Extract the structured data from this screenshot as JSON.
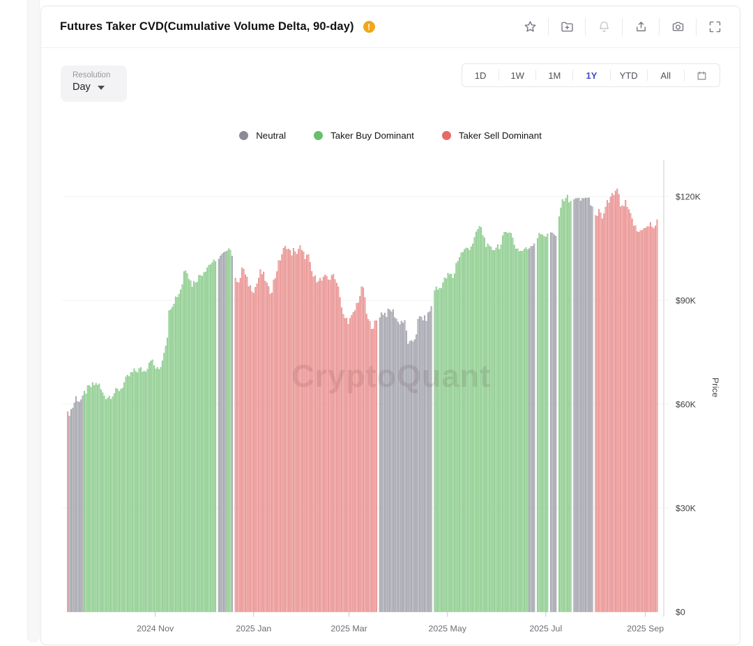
{
  "header": {
    "title": "Futures Taker CVD(Cumulative Volume Delta, 90-day)",
    "warning_icon": "!",
    "toolbar_icons": [
      {
        "name": "star-icon",
        "muted": false
      },
      {
        "name": "folder-add-icon",
        "muted": false
      },
      {
        "name": "bell-icon",
        "muted": true
      },
      {
        "name": "share-icon",
        "muted": false
      },
      {
        "name": "camera-icon",
        "muted": false
      },
      {
        "name": "fullscreen-icon",
        "muted": false
      }
    ]
  },
  "controls": {
    "resolution_label": "Resolution",
    "resolution_value": "Day",
    "ranges": [
      "1D",
      "1W",
      "1M",
      "1Y",
      "YTD",
      "All"
    ],
    "active_range": "1Y",
    "active_color": "#4348c4",
    "calendar_icon": "calendar-icon"
  },
  "legend": [
    {
      "key": "neutral",
      "label": "Neutral",
      "color": "#8b8b98"
    },
    {
      "key": "buy",
      "label": "Taker Buy Dominant",
      "color": "#69be6e"
    },
    {
      "key": "sell",
      "label": "Taker Sell Dominant",
      "color": "#e66a6a"
    }
  ],
  "watermark": "CryptoQuant",
  "chart_data": {
    "type": "bar",
    "title": "Futures Taker CVD(Cumulative Volume Delta, 90-day)",
    "resolution": "Day",
    "ylabel": "Price",
    "ylim": [
      0,
      130000
    ],
    "grid": true,
    "legend_position": "top",
    "bar_count": 357,
    "y_ticks": [
      {
        "value": 0,
        "label": "$0"
      },
      {
        "value": 30,
        "label": "$30K"
      },
      {
        "value": 60,
        "label": "$60K"
      },
      {
        "value": 90,
        "label": "$90K"
      },
      {
        "value": 120,
        "label": "$120K"
      }
    ],
    "x_ticks": [
      {
        "t": 0.149,
        "label": "2024 Nov"
      },
      {
        "t": 0.315,
        "label": "2025 Jan"
      },
      {
        "t": 0.476,
        "label": "2025 Mar"
      },
      {
        "t": 0.642,
        "label": "2025 May"
      },
      {
        "t": 0.808,
        "label": "2025 Jul"
      },
      {
        "t": 0.976,
        "label": "2025 Sep"
      }
    ],
    "categories": {
      "neutral": {
        "label": "Neutral",
        "fill": "#bebec6",
        "stroke": "#8d8d97"
      },
      "buy": {
        "label": "Taker Buy Dominant",
        "fill": "#acd9ab",
        "stroke": "#74c276"
      },
      "sell": {
        "label": "Taker Sell Dominant",
        "fill": "#f1aead",
        "stroke": "#e17c79"
      }
    },
    "price_unit": "USD thousands",
    "segments": [
      {
        "category": "sell",
        "points": [
          [
            0.0,
            55.5
          ],
          [
            0.002,
            57.5
          ]
        ]
      },
      {
        "category": "neutral",
        "points": [
          [
            0.004,
            57.5
          ],
          [
            0.011,
            59.5
          ],
          [
            0.015,
            62
          ],
          [
            0.021,
            61
          ],
          [
            0.028,
            61.5
          ]
        ]
      },
      {
        "category": "buy",
        "points": [
          [
            0.029,
            63
          ],
          [
            0.036,
            64.5
          ],
          [
            0.045,
            65.5
          ],
          [
            0.053,
            66
          ],
          [
            0.06,
            63
          ],
          [
            0.067,
            62
          ],
          [
            0.074,
            62.5
          ],
          [
            0.082,
            63.5
          ],
          [
            0.091,
            64.5
          ],
          [
            0.1,
            67
          ],
          [
            0.107,
            68.5
          ],
          [
            0.115,
            69.5
          ],
          [
            0.124,
            70
          ],
          [
            0.131,
            69.5
          ],
          [
            0.136,
            71
          ],
          [
            0.141,
            73.5
          ],
          [
            0.147,
            71
          ],
          [
            0.154,
            69.5
          ],
          [
            0.16,
            72
          ],
          [
            0.165,
            76.5
          ],
          [
            0.169,
            79
          ],
          [
            0.173,
            88
          ],
          [
            0.178,
            89
          ],
          [
            0.184,
            91
          ],
          [
            0.189,
            92
          ],
          [
            0.195,
            95
          ],
          [
            0.198,
            99
          ],
          [
            0.202,
            99.5
          ],
          [
            0.207,
            96
          ],
          [
            0.212,
            94.5
          ],
          [
            0.218,
            96
          ],
          [
            0.224,
            97
          ],
          [
            0.231,
            98.5
          ],
          [
            0.238,
            100
          ],
          [
            0.245,
            101
          ],
          [
            0.251,
            100.5
          ],
          [
            0.253,
            101
          ]
        ]
      },
      {
        "category": "neutral",
        "points": [
          [
            0.254,
            101.5
          ],
          [
            0.26,
            102.5
          ],
          [
            0.266,
            103.5
          ],
          [
            0.268,
            103
          ]
        ]
      },
      {
        "category": "buy",
        "points": [
          [
            0.269,
            104
          ],
          [
            0.272,
            106.5
          ],
          [
            0.274,
            105.5
          ],
          [
            0.276,
            104.5
          ]
        ]
      },
      {
        "category": "neutral",
        "points": [
          [
            0.278,
            103.5
          ],
          [
            0.28,
            103
          ]
        ]
      },
      {
        "category": "sell",
        "points": [
          [
            0.282,
            98.5
          ],
          [
            0.287,
            96
          ],
          [
            0.292,
            94.5
          ],
          [
            0.296,
            100.5
          ],
          [
            0.301,
            97
          ],
          [
            0.307,
            94.5
          ],
          [
            0.312,
            93.5
          ],
          [
            0.316,
            93
          ],
          [
            0.321,
            95
          ],
          [
            0.326,
            98
          ],
          [
            0.331,
            97.5
          ],
          [
            0.335,
            96
          ],
          [
            0.34,
            93
          ],
          [
            0.345,
            92.5
          ],
          [
            0.348,
            95
          ],
          [
            0.352,
            97
          ],
          [
            0.355,
            99.5
          ],
          [
            0.36,
            102
          ],
          [
            0.364,
            104
          ],
          [
            0.368,
            105
          ],
          [
            0.372,
            106
          ],
          [
            0.375,
            104
          ],
          [
            0.379,
            103.5
          ],
          [
            0.382,
            104.5
          ],
          [
            0.386,
            103
          ],
          [
            0.389,
            104.5
          ],
          [
            0.393,
            105.5
          ],
          [
            0.396,
            104
          ],
          [
            0.4,
            103
          ],
          [
            0.404,
            102.5
          ],
          [
            0.407,
            103
          ],
          [
            0.411,
            99.5
          ],
          [
            0.415,
            97
          ],
          [
            0.42,
            96
          ],
          [
            0.425,
            96.5
          ],
          [
            0.429,
            95.5
          ],
          [
            0.434,
            96
          ],
          [
            0.438,
            97
          ],
          [
            0.441,
            96.5
          ],
          [
            0.446,
            96
          ],
          [
            0.451,
            98
          ],
          [
            0.455,
            95
          ],
          [
            0.459,
            94.5
          ],
          [
            0.462,
            88.5
          ],
          [
            0.467,
            85
          ],
          [
            0.472,
            84.5
          ],
          [
            0.476,
            84
          ],
          [
            0.481,
            85
          ],
          [
            0.486,
            87
          ],
          [
            0.489,
            89
          ],
          [
            0.493,
            90.5
          ],
          [
            0.496,
            92.5
          ],
          [
            0.5,
            94
          ],
          [
            0.504,
            88
          ],
          [
            0.507,
            84.5
          ],
          [
            0.512,
            83
          ],
          [
            0.516,
            82.5
          ],
          [
            0.521,
            83.5
          ],
          [
            0.524,
            83.8
          ]
        ]
      },
      {
        "category": "neutral",
        "points": [
          [
            0.327,
            102.5
          ],
          [
            0.329,
            102.8
          ]
        ]
      },
      {
        "category": "neutral",
        "points": [
          [
            0.526,
            85.5
          ],
          [
            0.533,
            86.5
          ],
          [
            0.539,
            86
          ],
          [
            0.545,
            87
          ],
          [
            0.549,
            87.2
          ],
          [
            0.554,
            85.5
          ],
          [
            0.559,
            83.5
          ],
          [
            0.565,
            84
          ],
          [
            0.571,
            83.3
          ],
          [
            0.575,
            78
          ],
          [
            0.58,
            77
          ],
          [
            0.585,
            78.5
          ],
          [
            0.589,
            80
          ],
          [
            0.593,
            84.5
          ],
          [
            0.598,
            85
          ],
          [
            0.604,
            84.5
          ],
          [
            0.608,
            85
          ],
          [
            0.613,
            87.5
          ],
          [
            0.615,
            88
          ]
        ]
      },
      {
        "category": "buy",
        "points": [
          [
            0.618,
            93
          ],
          [
            0.622,
            93.5
          ],
          [
            0.627,
            93
          ],
          [
            0.632,
            94.5
          ],
          [
            0.638,
            96
          ],
          [
            0.642,
            97
          ],
          [
            0.647,
            97.5
          ],
          [
            0.651,
            96.5
          ],
          [
            0.654,
            98
          ],
          [
            0.658,
            101.5
          ],
          [
            0.662,
            102.5
          ],
          [
            0.667,
            104
          ],
          [
            0.672,
            104.5
          ],
          [
            0.676,
            105
          ],
          [
            0.681,
            105.5
          ],
          [
            0.686,
            107
          ],
          [
            0.691,
            109
          ],
          [
            0.695,
            111.5
          ],
          [
            0.699,
            110.5
          ],
          [
            0.702,
            109
          ],
          [
            0.706,
            107
          ],
          [
            0.709,
            105.5
          ],
          [
            0.714,
            104.5
          ],
          [
            0.719,
            104.8
          ],
          [
            0.724,
            105.5
          ],
          [
            0.728,
            106
          ],
          [
            0.732,
            105.5
          ],
          [
            0.735,
            107.5
          ],
          [
            0.74,
            109.5
          ],
          [
            0.744,
            110.5
          ],
          [
            0.747,
            110
          ],
          [
            0.751,
            108.5
          ],
          [
            0.754,
            106.5
          ],
          [
            0.759,
            105
          ],
          [
            0.764,
            104.5
          ],
          [
            0.768,
            104
          ],
          [
            0.772,
            105
          ],
          [
            0.775,
            104.5
          ],
          [
            0.779,
            105
          ]
        ]
      },
      {
        "category": "neutral",
        "points": [
          [
            0.78,
            105.5
          ],
          [
            0.784,
            106
          ],
          [
            0.787,
            106.8
          ],
          [
            0.791,
            106.5
          ]
        ]
      },
      {
        "category": "buy",
        "points": [
          [
            0.793,
            108
          ],
          [
            0.796,
            108.5
          ],
          [
            0.8,
            109
          ],
          [
            0.804,
            109.5
          ],
          [
            0.807,
            108.5
          ],
          [
            0.811,
            108.8
          ],
          [
            0.813,
            109
          ]
        ]
      },
      {
        "category": "neutral",
        "points": [
          [
            0.815,
            108.5
          ],
          [
            0.819,
            109
          ],
          [
            0.822,
            108.8
          ],
          [
            0.826,
            109
          ]
        ]
      },
      {
        "category": "buy",
        "points": [
          [
            0.828,
            111
          ],
          [
            0.831,
            116
          ],
          [
            0.834,
            117.5
          ],
          [
            0.838,
            119
          ],
          [
            0.841,
            120
          ],
          [
            0.845,
            119.5
          ],
          [
            0.848,
            118
          ],
          [
            0.852,
            119
          ]
        ]
      },
      {
        "category": "neutral",
        "points": [
          [
            0.854,
            119.5
          ],
          [
            0.858,
            120
          ],
          [
            0.861,
            119
          ],
          [
            0.865,
            118.5
          ],
          [
            0.868,
            119
          ],
          [
            0.872,
            119.5
          ],
          [
            0.875,
            120
          ],
          [
            0.879,
            119
          ],
          [
            0.882,
            118.5
          ],
          [
            0.886,
            118
          ],
          [
            0.888,
            117.5
          ]
        ]
      },
      {
        "category": "sell",
        "points": [
          [
            0.891,
            114
          ],
          [
            0.894,
            113
          ],
          [
            0.898,
            115.5
          ],
          [
            0.901,
            114.5
          ],
          [
            0.905,
            113.5
          ],
          [
            0.908,
            117
          ],
          [
            0.912,
            118.5
          ],
          [
            0.915,
            117.5
          ],
          [
            0.919,
            121
          ],
          [
            0.922,
            119
          ],
          [
            0.925,
            120.5
          ],
          [
            0.927,
            124
          ],
          [
            0.929,
            121
          ],
          [
            0.932,
            119.5
          ],
          [
            0.934,
            117.5
          ],
          [
            0.938,
            116
          ],
          [
            0.941,
            118.5
          ],
          [
            0.945,
            117
          ],
          [
            0.948,
            115.5
          ],
          [
            0.952,
            114
          ],
          [
            0.955,
            112.5
          ],
          [
            0.959,
            111
          ],
          [
            0.962,
            110
          ],
          [
            0.966,
            109.5
          ],
          [
            0.969,
            110.5
          ],
          [
            0.973,
            111.5
          ],
          [
            0.976,
            110.5
          ],
          [
            0.98,
            111
          ],
          [
            0.984,
            112
          ],
          [
            0.987,
            111.5
          ],
          [
            0.991,
            111
          ],
          [
            0.994,
            112
          ],
          [
            0.998,
            113
          ]
        ]
      }
    ]
  }
}
